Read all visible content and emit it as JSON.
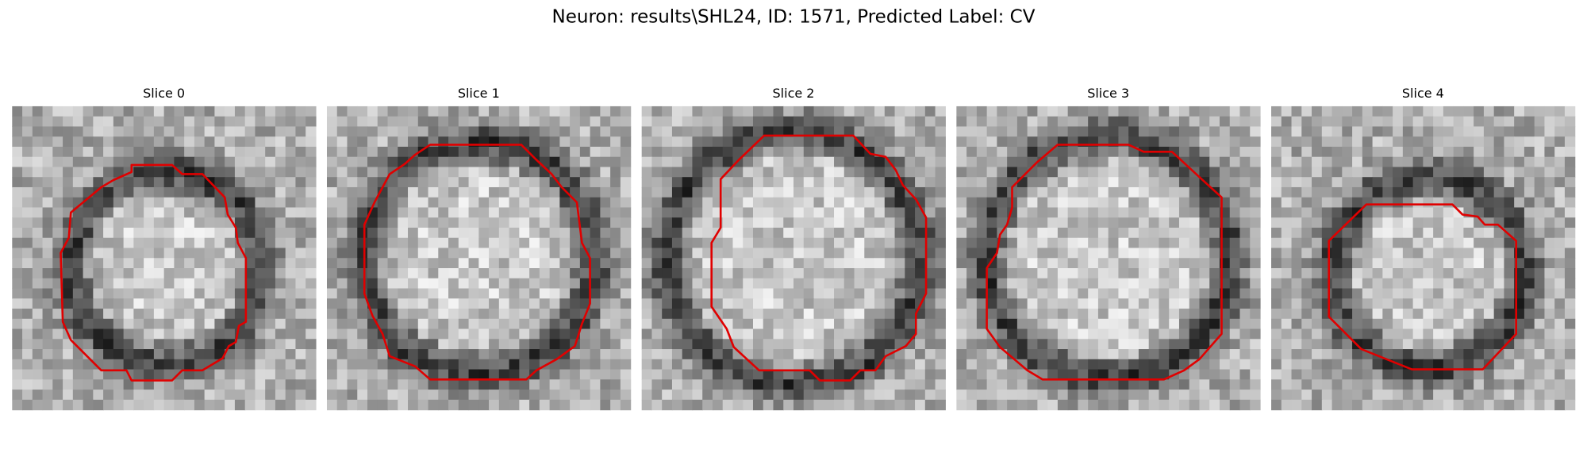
{
  "title": "Neuron: results\\SHL24, ID: 1571, Predicted Label: CV",
  "panels": [
    {
      "title": "Slice 0"
    },
    {
      "title": "Slice 1"
    },
    {
      "title": "Slice 2"
    },
    {
      "title": "Slice 3"
    },
    {
      "title": "Slice 4"
    }
  ]
}
